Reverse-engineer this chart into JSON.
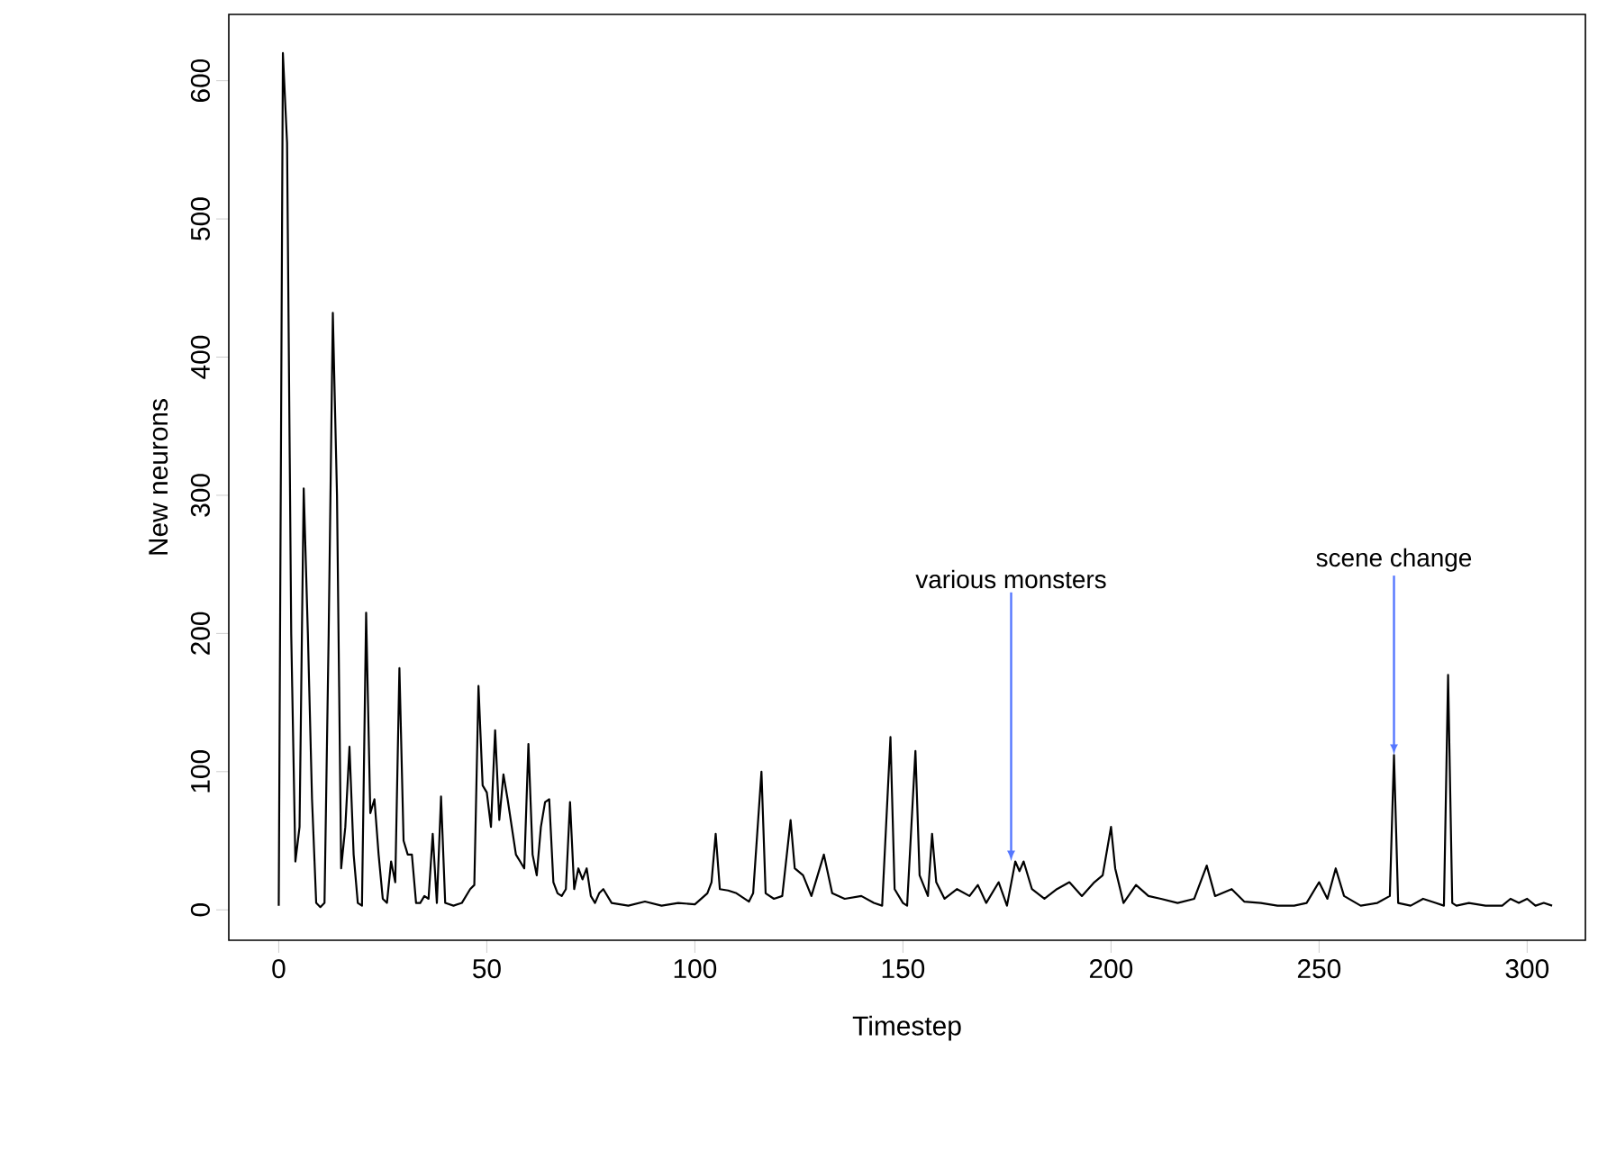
{
  "chart_data": {
    "type": "line",
    "xlabel": "Timestep",
    "ylabel": "New neurons",
    "xlim": [
      -12,
      314
    ],
    "ylim": [
      -22,
      648
    ],
    "xticks": [
      0,
      50,
      100,
      150,
      200,
      250,
      300
    ],
    "yticks": [
      0,
      100,
      200,
      300,
      400,
      500,
      600
    ],
    "marker": "none",
    "line_style": "solid",
    "annotations": [
      {
        "text": "various monsters",
        "x": 176,
        "y": 35
      },
      {
        "text": "scene change",
        "x": 268,
        "y": 112
      }
    ],
    "series": [
      {
        "color": "#000000",
        "x": [
          0,
          1,
          2,
          3,
          4,
          5,
          6,
          7,
          8,
          9,
          10,
          11,
          12,
          13,
          14,
          15,
          16,
          17,
          18,
          19,
          20,
          21,
          22,
          23,
          24,
          25,
          26,
          27,
          28,
          29,
          30,
          31,
          32,
          33,
          34,
          35,
          36,
          37,
          38,
          39,
          40,
          42,
          44,
          46,
          47,
          48,
          49,
          50,
          51,
          52,
          53,
          54,
          55,
          56,
          57,
          58,
          59,
          60,
          61,
          62,
          63,
          64,
          65,
          66,
          67,
          68,
          69,
          70,
          71,
          72,
          73,
          74,
          75,
          76,
          77,
          78,
          80,
          84,
          88,
          92,
          96,
          100,
          103,
          104,
          105,
          106,
          108,
          110,
          113,
          114,
          116,
          117,
          119,
          121,
          123,
          124,
          126,
          128,
          131,
          133,
          136,
          140,
          143,
          145,
          147,
          148,
          150,
          151,
          153,
          154,
          156,
          157,
          158,
          160,
          163,
          166,
          168,
          170,
          173,
          175,
          177,
          178,
          179,
          181,
          184,
          187,
          190,
          193,
          196,
          198,
          200,
          201,
          203,
          206,
          209,
          212,
          216,
          220,
          223,
          225,
          229,
          232,
          236,
          240,
          244,
          247,
          250,
          252,
          254,
          256,
          260,
          264,
          267,
          268,
          269,
          272,
          275,
          278,
          280,
          281,
          282,
          283,
          286,
          290,
          294,
          296,
          298,
          300,
          302,
          304,
          306
        ],
        "values": [
          3,
          620,
          555,
          200,
          35,
          60,
          305,
          200,
          80,
          5,
          2,
          5,
          200,
          432,
          300,
          30,
          60,
          118,
          40,
          5,
          3,
          215,
          70,
          80,
          40,
          8,
          5,
          35,
          20,
          175,
          50,
          40,
          40,
          5,
          5,
          10,
          8,
          55,
          5,
          82,
          5,
          3,
          5,
          15,
          18,
          162,
          90,
          85,
          60,
          130,
          65,
          98,
          80,
          60,
          40,
          35,
          30,
          120,
          40,
          25,
          60,
          78,
          80,
          20,
          12,
          10,
          15,
          78,
          15,
          30,
          22,
          30,
          10,
          5,
          12,
          15,
          5,
          3,
          6,
          3,
          5,
          4,
          12,
          20,
          55,
          15,
          14,
          12,
          6,
          12,
          100,
          12,
          8,
          10,
          65,
          30,
          25,
          10,
          40,
          12,
          8,
          10,
          5,
          3,
          125,
          15,
          5,
          3,
          115,
          25,
          10,
          55,
          20,
          8,
          15,
          10,
          18,
          5,
          20,
          3,
          35,
          28,
          35,
          15,
          8,
          15,
          20,
          10,
          20,
          25,
          60,
          30,
          5,
          18,
          10,
          8,
          5,
          8,
          32,
          10,
          15,
          6,
          5,
          3,
          3,
          5,
          20,
          8,
          30,
          10,
          3,
          5,
          10,
          112,
          5,
          3,
          8,
          5,
          3,
          170,
          5,
          3,
          5,
          3,
          3,
          8,
          5,
          8,
          3,
          5,
          3
        ]
      }
    ]
  }
}
